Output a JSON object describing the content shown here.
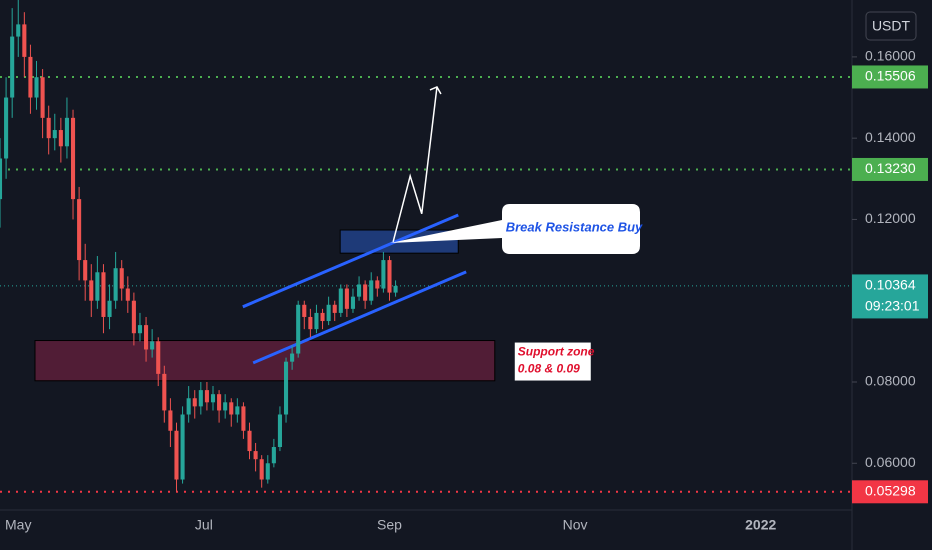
{
  "chart_data": {
    "type": "candlestick",
    "currency": "USDT",
    "up_color": "#26a69a",
    "down_color": "#ef5350",
    "xlim": [
      0,
      140
    ],
    "xticks": [
      {
        "value": 3,
        "label": "May"
      },
      {
        "value": 33.5,
        "label": "Jul"
      },
      {
        "value": 64,
        "label": "Sep"
      },
      {
        "value": 94.5,
        "label": "Nov"
      },
      {
        "value": 125,
        "label": "2022"
      }
    ],
    "ylim": [
      0.0485,
      0.174
    ],
    "yticks": [
      {
        "value": 0.16,
        "label": "0.16000"
      },
      {
        "value": 0.14,
        "label": "0.14000"
      },
      {
        "value": 0.12,
        "label": "0.12000"
      },
      {
        "value": 0.08,
        "label": "0.08000"
      },
      {
        "value": 0.06,
        "label": "0.06000"
      }
    ],
    "candles": {
      "open": [
        0.125,
        0.135,
        0.15,
        0.165,
        0.168,
        0.16,
        0.15,
        0.155,
        0.145,
        0.14,
        0.142,
        0.138,
        0.145,
        0.125,
        0.11,
        0.105,
        0.1,
        0.107,
        0.096,
        0.1,
        0.108,
        0.103,
        0.1,
        0.092,
        0.094,
        0.088,
        0.09,
        0.082,
        0.073,
        0.068,
        0.056,
        0.072,
        0.076,
        0.074,
        0.078,
        0.075,
        0.077,
        0.073,
        0.075,
        0.072,
        0.074,
        0.068,
        0.063,
        0.061,
        0.056,
        0.06,
        0.064,
        0.072,
        0.085,
        0.087,
        0.099,
        0.096,
        0.093,
        0.097,
        0.095,
        0.099,
        0.097,
        0.103,
        0.098,
        0.101,
        0.104,
        0.1,
        0.105,
        0.103,
        0.11,
        0.102
      ],
      "high": [
        0.14,
        0.155,
        0.172,
        0.174,
        0.171,
        0.163,
        0.159,
        0.157,
        0.148,
        0.146,
        0.145,
        0.15,
        0.147,
        0.128,
        0.114,
        0.109,
        0.111,
        0.109,
        0.104,
        0.112,
        0.11,
        0.106,
        0.102,
        0.097,
        0.096,
        0.093,
        0.091,
        0.084,
        0.076,
        0.07,
        0.074,
        0.079,
        0.078,
        0.08,
        0.08,
        0.079,
        0.078,
        0.077,
        0.076,
        0.076,
        0.075,
        0.07,
        0.065,
        0.062,
        0.062,
        0.066,
        0.074,
        0.086,
        0.089,
        0.1,
        0.1,
        0.098,
        0.099,
        0.098,
        0.101,
        0.1,
        0.104,
        0.104,
        0.103,
        0.106,
        0.105,
        0.107,
        0.106,
        0.112,
        0.111,
        0.105
      ],
      "low": [
        0.118,
        0.13,
        0.145,
        0.16,
        0.155,
        0.146,
        0.147,
        0.14,
        0.136,
        0.137,
        0.134,
        0.135,
        0.12,
        0.105,
        0.1,
        0.096,
        0.098,
        0.092,
        0.093,
        0.098,
        0.1,
        0.097,
        0.089,
        0.09,
        0.085,
        0.086,
        0.079,
        0.07,
        0.064,
        0.053,
        0.055,
        0.07,
        0.071,
        0.072,
        0.073,
        0.073,
        0.07,
        0.071,
        0.069,
        0.07,
        0.066,
        0.061,
        0.058,
        0.054,
        0.055,
        0.059,
        0.063,
        0.07,
        0.083,
        0.086,
        0.093,
        0.091,
        0.092,
        0.093,
        0.094,
        0.095,
        0.096,
        0.096,
        0.097,
        0.1,
        0.098,
        0.099,
        0.101,
        0.102,
        0.1,
        0.101
      ],
      "close": [
        0.135,
        0.15,
        0.165,
        0.168,
        0.16,
        0.15,
        0.155,
        0.145,
        0.14,
        0.142,
        0.138,
        0.145,
        0.125,
        0.11,
        0.105,
        0.1,
        0.107,
        0.096,
        0.1,
        0.108,
        0.103,
        0.1,
        0.092,
        0.094,
        0.088,
        0.09,
        0.082,
        0.073,
        0.068,
        0.056,
        0.072,
        0.076,
        0.074,
        0.078,
        0.075,
        0.077,
        0.073,
        0.075,
        0.072,
        0.074,
        0.068,
        0.063,
        0.061,
        0.056,
        0.06,
        0.064,
        0.072,
        0.085,
        0.087,
        0.099,
        0.096,
        0.093,
        0.097,
        0.095,
        0.099,
        0.097,
        0.103,
        0.098,
        0.101,
        0.104,
        0.1,
        0.105,
        0.103,
        0.11,
        0.102,
        0.10364
      ]
    },
    "levels": [
      {
        "value": 0.15506,
        "label": "0.15506",
        "color": "#4caf50"
      },
      {
        "value": 0.1323,
        "label": "0.13230",
        "color": "#4caf50"
      },
      {
        "value": 0.10364,
        "label": "0.10364",
        "color": "#26a69a",
        "countdown": "09:23:01"
      },
      {
        "value": 0.05298,
        "label": "0.05298",
        "color": "#f23645"
      }
    ],
    "support_zone": {
      "x": [
        5.75,
        81.3
      ],
      "y": [
        0.0803,
        0.0902
      ],
      "color": "#5d1f3a",
      "text": [
        "Support zone",
        "0.08 & 0.09"
      ]
    },
    "resistance_box": {
      "x": [
        55.9,
        75.3
      ],
      "y": [
        0.1117,
        0.1174
      ],
      "color": "#1e3a78"
    },
    "channel": {
      "color": "#2962ff",
      "upper": {
        "x": [
          39.9,
          75.3
        ],
        "y": [
          0.0985,
          0.1211
        ]
      },
      "lower": {
        "x": [
          41.6,
          76.6
        ],
        "y": [
          0.0847,
          0.1071
        ]
      }
    },
    "arrow": {
      "x": [
        64.6,
        67.4,
        69.3,
        71.8
      ],
      "y": [
        0.1145,
        0.1307,
        0.1214,
        0.1526
      ]
    },
    "callout": "Break Resistance Buy"
  }
}
